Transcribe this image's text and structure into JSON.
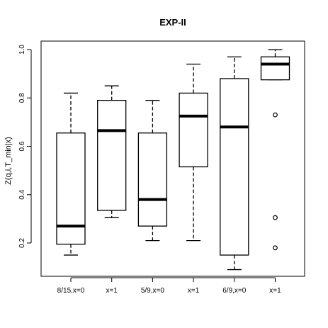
{
  "chart_data": {
    "type": "boxplot",
    "title": "EXP-II",
    "xlabel": "",
    "ylabel": "Z(q,i,T_min|x)",
    "ylim": [
      0.08,
      1.02
    ],
    "yticks": [
      0.2,
      0.4,
      0.6,
      0.8,
      1.0
    ],
    "ytick_labels": [
      "0.2",
      "0.4",
      "0.6",
      "0.8",
      "1.0"
    ],
    "grid": false,
    "legend": "none",
    "categories": [
      "8/15,x=0",
      "x=1",
      "5/9,x=0",
      "x=1",
      "6/9,x=0",
      "x=1"
    ],
    "boxes": [
      {
        "whisker_low": 0.15,
        "q1": 0.195,
        "median": 0.27,
        "q3": 0.655,
        "whisker_high": 0.82,
        "outliers": []
      },
      {
        "whisker_low": 0.305,
        "q1": 0.335,
        "median": 0.665,
        "q3": 0.79,
        "whisker_high": 0.85,
        "outliers": []
      },
      {
        "whisker_low": 0.21,
        "q1": 0.27,
        "median": 0.38,
        "q3": 0.655,
        "whisker_high": 0.79,
        "outliers": []
      },
      {
        "whisker_low": 0.21,
        "q1": 0.515,
        "median": 0.725,
        "q3": 0.82,
        "whisker_high": 0.94,
        "outliers": []
      },
      {
        "whisker_low": 0.09,
        "q1": 0.15,
        "median": 0.68,
        "q3": 0.88,
        "whisker_high": 0.97,
        "outliers": []
      },
      {
        "whisker_low": 0.875,
        "q1": 0.875,
        "median": 0.94,
        "q3": 0.97,
        "whisker_high": 1.0,
        "outliers": [
          0.73,
          0.305,
          0.18
        ]
      }
    ]
  }
}
